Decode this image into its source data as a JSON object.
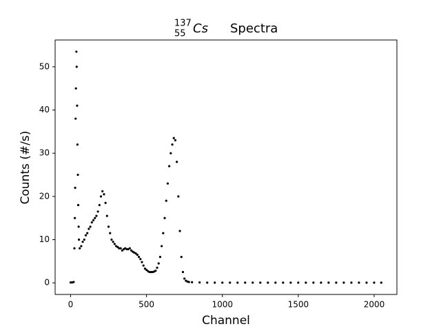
{
  "chart_data": {
    "type": "scatter",
    "title": {
      "mass_number": "137",
      "atomic_number": "55",
      "symbol": "Cs",
      "text": "Spectra"
    },
    "x_label": "Channel",
    "y_label": "Counts (#/s)",
    "x": [
      0,
      10,
      20,
      25,
      28,
      30,
      33,
      35,
      38,
      40,
      43,
      45,
      48,
      50,
      53,
      55,
      60,
      70,
      80,
      90,
      100,
      110,
      120,
      130,
      140,
      150,
      160,
      170,
      180,
      190,
      200,
      210,
      220,
      230,
      240,
      250,
      260,
      270,
      280,
      290,
      300,
      310,
      320,
      330,
      340,
      350,
      360,
      370,
      380,
      390,
      400,
      410,
      420,
      430,
      440,
      450,
      460,
      470,
      480,
      490,
      500,
      510,
      520,
      530,
      540,
      550,
      560,
      570,
      580,
      590,
      600,
      610,
      620,
      630,
      640,
      650,
      660,
      670,
      680,
      690,
      700,
      710,
      720,
      730,
      740,
      750,
      760,
      770,
      780,
      800,
      850,
      900,
      950,
      1000,
      1050,
      1100,
      1150,
      1200,
      1250,
      1300,
      1350,
      1400,
      1450,
      1500,
      1550,
      1600,
      1650,
      1700,
      1750,
      1800,
      1850,
      1900,
      1950,
      2000,
      2047
    ],
    "series": [
      {
        "color": "#000000",
        "values": [
          0.1,
          0.1,
          0.2,
          8,
          15,
          22,
          38,
          45,
          53.5,
          50,
          41,
          32,
          25,
          18,
          13,
          10,
          8,
          8.5,
          9.5,
          10,
          11,
          11.5,
          12.5,
          13,
          14,
          14.5,
          15,
          15.5,
          16.5,
          18,
          20,
          21.2,
          20.5,
          18.5,
          15.5,
          13,
          11.5,
          10,
          9.5,
          9,
          8.5,
          8.3,
          8,
          8,
          7.5,
          7.8,
          8,
          7.8,
          7.8,
          8,
          7.5,
          7.2,
          7,
          6.8,
          6.5,
          6,
          5.5,
          4.8,
          4,
          3.3,
          3,
          2.7,
          2.5,
          2.5,
          2.5,
          2.6,
          2.8,
          3.5,
          4.5,
          6,
          8.5,
          11.5,
          15,
          19,
          23,
          27,
          30,
          32,
          33.5,
          33,
          28,
          20,
          12,
          6,
          2.5,
          1,
          0.5,
          0.3,
          0.2,
          0.15,
          0.1,
          0.05,
          0.05,
          0.05,
          0.05,
          0.05,
          0.05,
          0.05,
          0.05,
          0.05,
          0.05,
          0.05,
          0.05,
          0.05,
          0.05,
          0.05,
          0.05,
          0.05,
          0.05,
          0.05,
          0.05,
          0.05,
          0.05,
          0.05,
          0.05
        ]
      }
    ],
    "xlim": [
      -102,
      2150
    ],
    "ylim": [
      -2.68,
      56.2
    ],
    "xticks": [
      0,
      500,
      1000,
      1500,
      2000
    ],
    "yticks": [
      0,
      10,
      20,
      30,
      40,
      50
    ]
  }
}
